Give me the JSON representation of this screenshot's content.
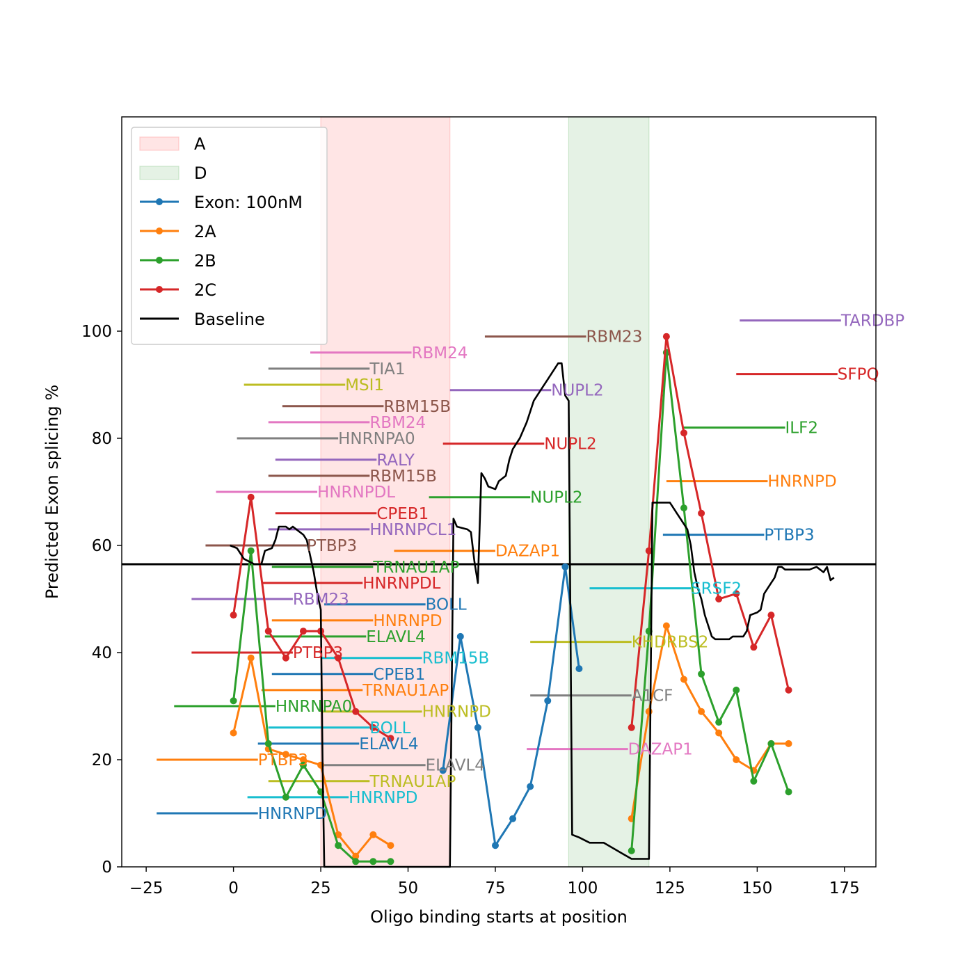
{
  "chart_data": {
    "type": "line",
    "title": "",
    "xlabel": "Oligo binding starts at position",
    "ylabel": "Predicted Exon splicing %",
    "xlim": [
      -32,
      184
    ],
    "ylim": [
      0,
      140
    ],
    "xticks": [
      -25,
      0,
      25,
      50,
      75,
      100,
      125,
      150,
      175
    ],
    "xtick_labels": [
      "−25",
      "0",
      "25",
      "50",
      "75",
      "100",
      "125",
      "150",
      "175"
    ],
    "yticks": [
      0,
      20,
      40,
      60,
      80,
      100
    ],
    "ytick_labels": [
      "0",
      "20",
      "40",
      "60",
      "80",
      "100"
    ],
    "grid": false,
    "legend_position": "top-left",
    "regions": [
      {
        "name": "A",
        "x0": 25,
        "x1": 62,
        "color": "#ff9999"
      },
      {
        "name": "D",
        "x0": 96,
        "x1": 119,
        "color": "#99cc99"
      }
    ],
    "series": [
      {
        "name": "Exon: 100nM",
        "color": "#1f77b4",
        "points": [
          [
            60,
            18
          ],
          [
            65,
            43
          ],
          [
            70,
            26
          ],
          [
            75,
            4
          ],
          [
            80,
            9
          ],
          [
            85,
            15
          ],
          [
            90,
            31
          ],
          [
            95,
            56
          ],
          [
            99,
            37
          ]
        ]
      },
      {
        "name": "2A",
        "color": "#ff7f0e",
        "points": [
          [
            0,
            25
          ],
          [
            5,
            39
          ],
          [
            10,
            22
          ],
          [
            15,
            21
          ],
          [
            20,
            20
          ],
          [
            25,
            19
          ],
          [
            30,
            6
          ],
          [
            35,
            2
          ],
          [
            40,
            6
          ],
          [
            45,
            4
          ],
          [
            114,
            9
          ],
          [
            119,
            29
          ],
          [
            124,
            45
          ],
          [
            129,
            35
          ],
          [
            134,
            29
          ],
          [
            139,
            25
          ],
          [
            144,
            20
          ],
          [
            149,
            18
          ],
          [
            154,
            23
          ],
          [
            159,
            23
          ]
        ]
      },
      {
        "name": "2B",
        "color": "#2ca02c",
        "points": [
          [
            0,
            31
          ],
          [
            5,
            59
          ],
          [
            10,
            23
          ],
          [
            15,
            13
          ],
          [
            20,
            19
          ],
          [
            25,
            14
          ],
          [
            30,
            4
          ],
          [
            35,
            1
          ],
          [
            40,
            1
          ],
          [
            45,
            1
          ],
          [
            114,
            3
          ],
          [
            119,
            44
          ],
          [
            124,
            96
          ],
          [
            129,
            67
          ],
          [
            134,
            36
          ],
          [
            139,
            27
          ],
          [
            144,
            33
          ],
          [
            149,
            16
          ],
          [
            154,
            23
          ],
          [
            159,
            14
          ]
        ]
      },
      {
        "name": "2C",
        "color": "#d62728",
        "points": [
          [
            0,
            47
          ],
          [
            5,
            69
          ],
          [
            10,
            44
          ],
          [
            15,
            39
          ],
          [
            20,
            44
          ],
          [
            25,
            44
          ],
          [
            30,
            39
          ],
          [
            35,
            29
          ],
          [
            40,
            26
          ],
          [
            45,
            24
          ],
          [
            114,
            26
          ],
          [
            119,
            59
          ],
          [
            124,
            99
          ],
          [
            129,
            81
          ],
          [
            134,
            66
          ],
          [
            139,
            50
          ],
          [
            144,
            51
          ],
          [
            149,
            41
          ],
          [
            154,
            47
          ],
          [
            159,
            33
          ]
        ]
      },
      {
        "name": "Baseline",
        "color": "#000000",
        "points": [
          [
            -1,
            60
          ],
          [
            1,
            59.5
          ],
          [
            2,
            58.5
          ],
          [
            3,
            57.5
          ],
          [
            6,
            56.5
          ],
          [
            8,
            56.5
          ],
          [
            9,
            59
          ],
          [
            11,
            59.5
          ],
          [
            12,
            61
          ],
          [
            13,
            63.5
          ],
          [
            15,
            63.5
          ],
          [
            16,
            63
          ],
          [
            17,
            63.5
          ],
          [
            18,
            63
          ],
          [
            20,
            62
          ],
          [
            21,
            61
          ],
          [
            22,
            58
          ],
          [
            23,
            55
          ],
          [
            24,
            51
          ],
          [
            25,
            48
          ],
          [
            25.5,
            20
          ],
          [
            26,
            0
          ],
          [
            61,
            0
          ],
          [
            62,
            0
          ],
          [
            63,
            65
          ],
          [
            64,
            63.5
          ],
          [
            67,
            63
          ],
          [
            68,
            62.5
          ],
          [
            69,
            57
          ],
          [
            70,
            53
          ],
          [
            71,
            73.5
          ],
          [
            72,
            72.5
          ],
          [
            73,
            71
          ],
          [
            75,
            70.5
          ],
          [
            76,
            72
          ],
          [
            78,
            73
          ],
          [
            79,
            76
          ],
          [
            80,
            78
          ],
          [
            82,
            80
          ],
          [
            84,
            83
          ],
          [
            86,
            87
          ],
          [
            88,
            89
          ],
          [
            90,
            91
          ],
          [
            92,
            93
          ],
          [
            93,
            94
          ],
          [
            94,
            94
          ],
          [
            95,
            88
          ],
          [
            96,
            87
          ],
          [
            97,
            6
          ],
          [
            99,
            5.5
          ],
          [
            102,
            4.5
          ],
          [
            106,
            4.5
          ],
          [
            110,
            3
          ],
          [
            114,
            1.5
          ],
          [
            118,
            1.5
          ],
          [
            119,
            1.5
          ],
          [
            120,
            68
          ],
          [
            125,
            68
          ],
          [
            126,
            67
          ],
          [
            127,
            66
          ],
          [
            128,
            65
          ],
          [
            129,
            64
          ],
          [
            130,
            63
          ],
          [
            131,
            60
          ],
          [
            132,
            55
          ],
          [
            133,
            52
          ],
          [
            134,
            50
          ],
          [
            135,
            47
          ],
          [
            136,
            45
          ],
          [
            137,
            43
          ],
          [
            138,
            42.5
          ],
          [
            140,
            42.5
          ],
          [
            142,
            42.5
          ],
          [
            143,
            43
          ],
          [
            146,
            43
          ],
          [
            147,
            44
          ],
          [
            148,
            47
          ],
          [
            150,
            47.5
          ],
          [
            151,
            48
          ],
          [
            152,
            51
          ],
          [
            154,
            53
          ],
          [
            155,
            54
          ],
          [
            156,
            56
          ],
          [
            157,
            56
          ],
          [
            158,
            55.5
          ],
          [
            163,
            55.5
          ],
          [
            165,
            55.5
          ],
          [
            167,
            56
          ],
          [
            169,
            55
          ],
          [
            170,
            56
          ],
          [
            171,
            53.5
          ],
          [
            172,
            54
          ]
        ]
      }
    ],
    "hline": {
      "y": 56.5,
      "color": "#000000"
    },
    "annotations": [
      {
        "text": "TARDBP",
        "x0": 145,
        "x1": 174,
        "y": 102,
        "color": "#9467bd"
      },
      {
        "text": "RBM23",
        "x0": 72,
        "x1": 101,
        "y": 99,
        "color": "#8c564b"
      },
      {
        "text": "RBM24",
        "x0": 22,
        "x1": 51,
        "y": 96,
        "color": "#e377c2"
      },
      {
        "text": "TIA1",
        "x0": 10,
        "x1": 39,
        "y": 93,
        "color": "#7f7f7f"
      },
      {
        "text": "SFPQ",
        "x0": 144,
        "x1": 173,
        "y": 92,
        "color": "#d62728"
      },
      {
        "text": "MSI1",
        "x0": 3,
        "x1": 32,
        "y": 90,
        "color": "#bcbd22"
      },
      {
        "text": "NUPL2",
        "x0": 62,
        "x1": 91,
        "y": 89,
        "color": "#9467bd"
      },
      {
        "text": "RBM15B",
        "x0": 14,
        "x1": 43,
        "y": 86,
        "color": "#8c564b"
      },
      {
        "text": "RBM24",
        "x0": 10,
        "x1": 39,
        "y": 83,
        "color": "#e377c2"
      },
      {
        "text": "ILF2",
        "x0": 129,
        "x1": 158,
        "y": 82,
        "color": "#2ca02c"
      },
      {
        "text": "HNRNPA0",
        "x0": 1,
        "x1": 30,
        "y": 80,
        "color": "#7f7f7f"
      },
      {
        "text": "NUPL2",
        "x0": 60,
        "x1": 89,
        "y": 79,
        "color": "#d62728"
      },
      {
        "text": "RALY",
        "x0": 12,
        "x1": 41,
        "y": 76,
        "color": "#9467bd"
      },
      {
        "text": "RBM15B",
        "x0": 10,
        "x1": 39,
        "y": 73,
        "color": "#8c564b"
      },
      {
        "text": "HNRNPD",
        "x0": 124,
        "x1": 153,
        "y": 72,
        "color": "#ff7f0e"
      },
      {
        "text": "HNRNPDL",
        "x0": -5,
        "x1": 24,
        "y": 70,
        "color": "#e377c2"
      },
      {
        "text": "NUPL2",
        "x0": 56,
        "x1": 85,
        "y": 69,
        "color": "#2ca02c"
      },
      {
        "text": "CPEB1",
        "x0": 12,
        "x1": 41,
        "y": 66,
        "color": "#d62728"
      },
      {
        "text": "HNRNPCL1",
        "x0": 10,
        "x1": 39,
        "y": 63,
        "color": "#9467bd"
      },
      {
        "text": "PTBP3",
        "x0": 123,
        "x1": 152,
        "y": 62,
        "color": "#1f77b4"
      },
      {
        "text": "PTBP3",
        "x0": -8,
        "x1": 21,
        "y": 60,
        "color": "#8c564b"
      },
      {
        "text": "DAZAP1",
        "x0": 46,
        "x1": 75,
        "y": 59,
        "color": "#ff7f0e"
      },
      {
        "text": "TRNAU1AP",
        "x0": 11,
        "x1": 40,
        "y": 56,
        "color": "#2ca02c"
      },
      {
        "text": "HNRNPDL",
        "x0": 8,
        "x1": 37,
        "y": 53,
        "color": "#d62728"
      },
      {
        "text": "SRSF2",
        "x0": 102,
        "x1": 131,
        "y": 52,
        "color": "#17becf"
      },
      {
        "text": "RBM23",
        "x0": -12,
        "x1": 17,
        "y": 50,
        "color": "#9467bd"
      },
      {
        "text": "BOLL",
        "x0": 26,
        "x1": 55,
        "y": 49,
        "color": "#1f77b4"
      },
      {
        "text": "HNRNPD",
        "x0": 11,
        "x1": 40,
        "y": 46,
        "color": "#ff7f0e"
      },
      {
        "text": "ELAVL4",
        "x0": 9,
        "x1": 38,
        "y": 43,
        "color": "#2ca02c"
      },
      {
        "text": "KHDRBS2",
        "x0": 85,
        "x1": 114,
        "y": 42,
        "color": "#bcbd22"
      },
      {
        "text": "PTBP3",
        "x0": -12,
        "x1": 17,
        "y": 40,
        "color": "#d62728"
      },
      {
        "text": "RBM15B",
        "x0": 25,
        "x1": 54,
        "y": 39,
        "color": "#17becf"
      },
      {
        "text": "CPEB1",
        "x0": 11,
        "x1": 40,
        "y": 36,
        "color": "#1f77b4"
      },
      {
        "text": "TRNAU1AP",
        "x0": 8,
        "x1": 37,
        "y": 33,
        "color": "#ff7f0e"
      },
      {
        "text": "A1CF",
        "x0": 85,
        "x1": 114,
        "y": 32,
        "color": "#7f7f7f"
      },
      {
        "text": "HNRNPA0",
        "x0": -17,
        "x1": 12,
        "y": 30,
        "color": "#2ca02c"
      },
      {
        "text": "HNRNPD",
        "x0": 25,
        "x1": 54,
        "y": 29,
        "color": "#bcbd22"
      },
      {
        "text": "BOLL",
        "x0": 10,
        "x1": 39,
        "y": 26,
        "color": "#17becf"
      },
      {
        "text": "ELAVL4",
        "x0": 7,
        "x1": 36,
        "y": 23,
        "color": "#1f77b4"
      },
      {
        "text": "DAZAP1",
        "x0": 84,
        "x1": 113,
        "y": 22,
        "color": "#e377c2"
      },
      {
        "text": "PTBP3",
        "x0": -22,
        "x1": 7,
        "y": 20,
        "color": "#ff7f0e"
      },
      {
        "text": "ELAVL4",
        "x0": 26,
        "x1": 55,
        "y": 19,
        "color": "#7f7f7f"
      },
      {
        "text": "TRNAU1AP",
        "x0": 10,
        "x1": 39,
        "y": 16,
        "color": "#bcbd22"
      },
      {
        "text": "HNRNPD",
        "x0": 4,
        "x1": 33,
        "y": 13,
        "color": "#17becf"
      },
      {
        "text": "HNRNPD",
        "x0": -22,
        "x1": 7,
        "y": 10,
        "color": "#1f77b4"
      }
    ]
  }
}
